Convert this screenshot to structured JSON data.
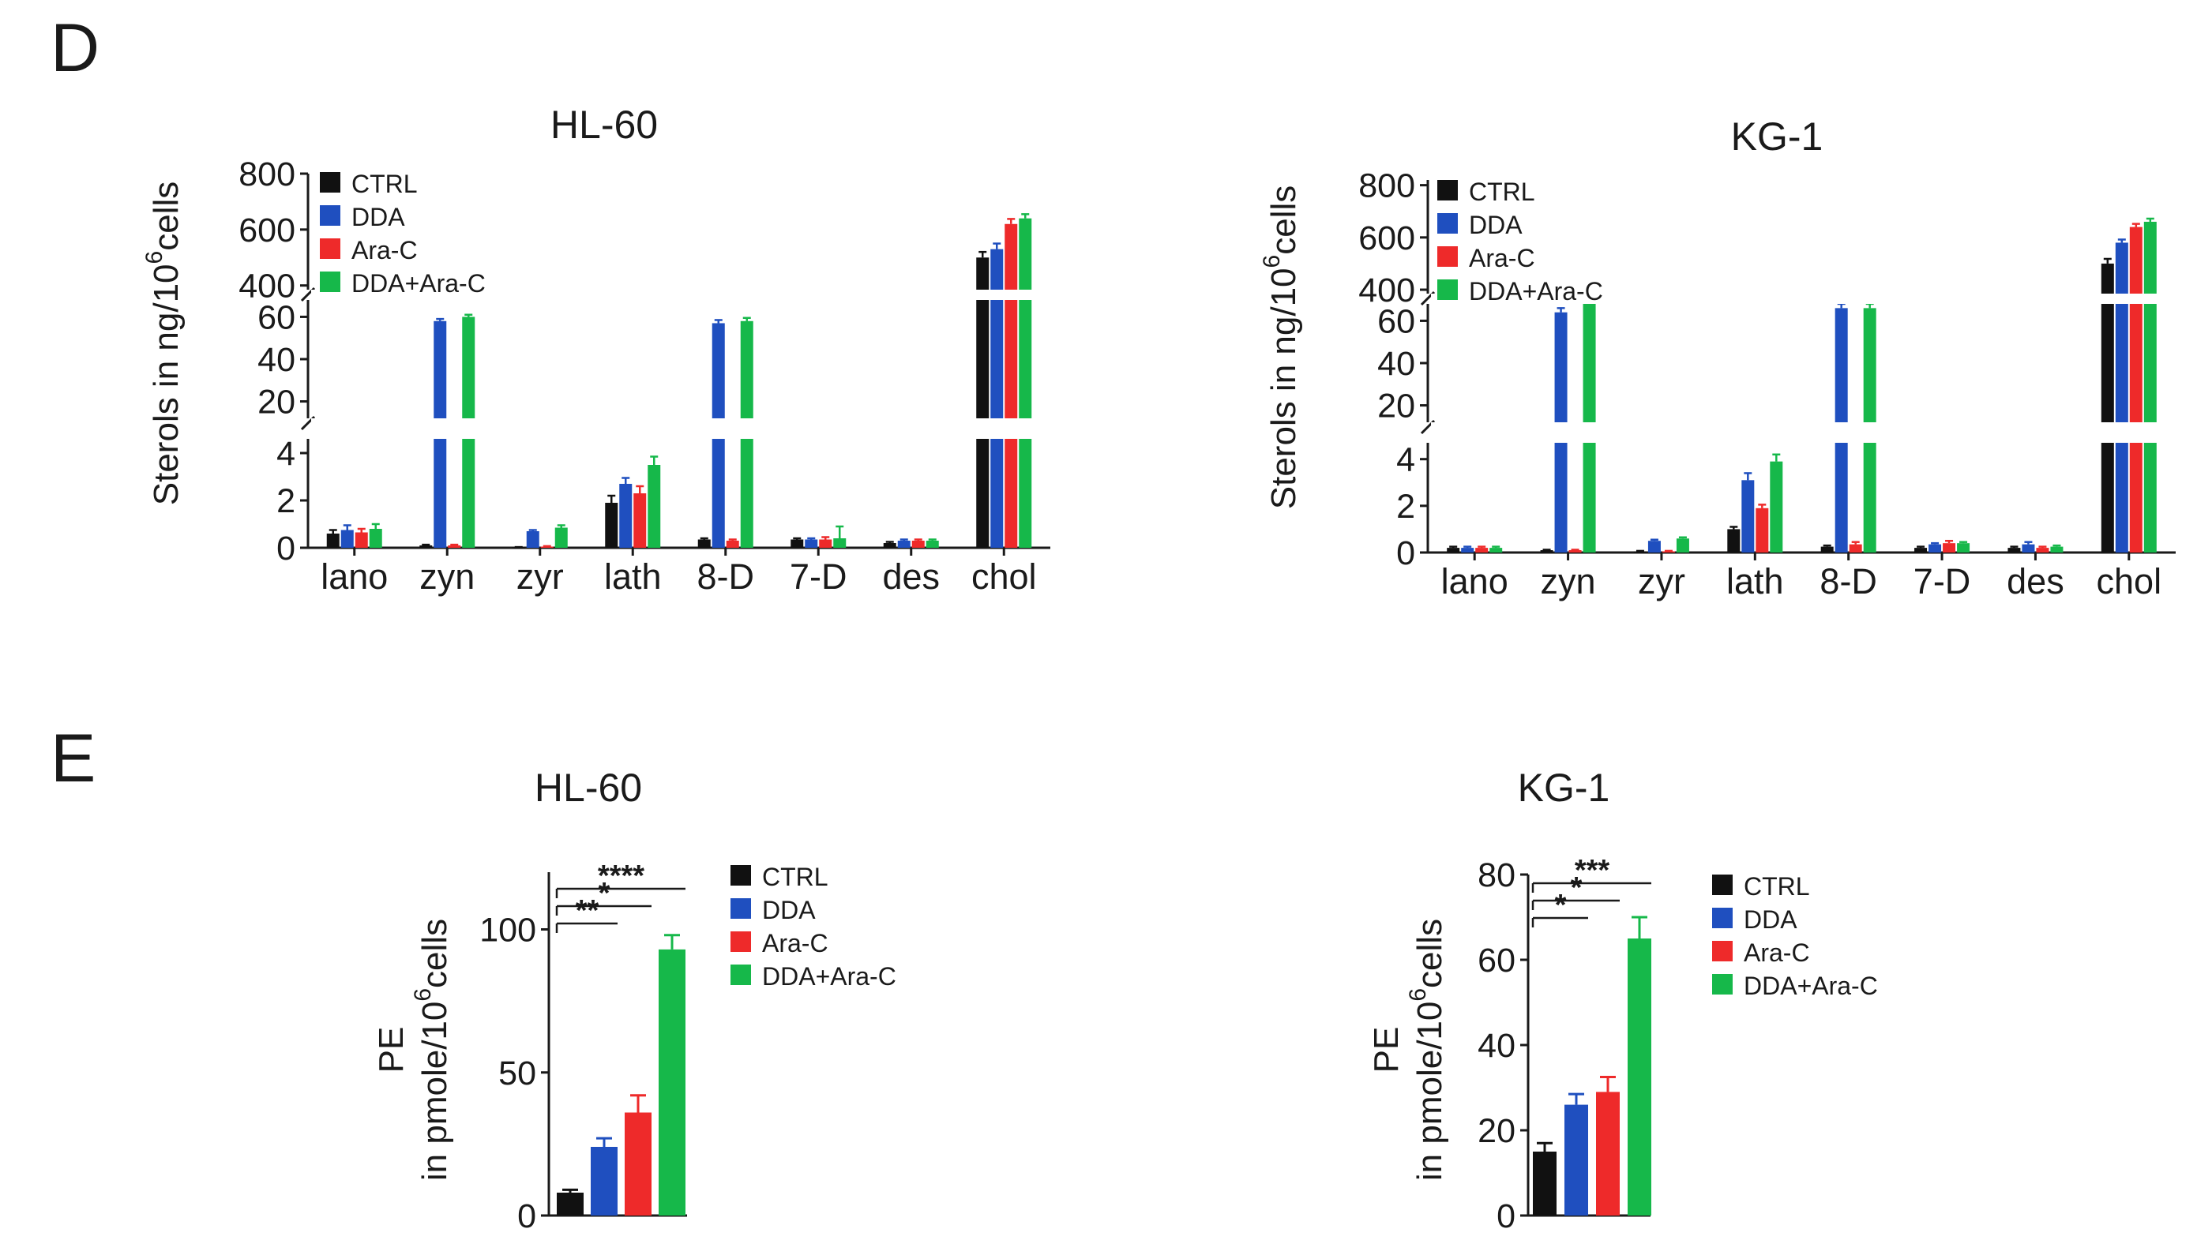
{
  "figure": {
    "panel_d": "D",
    "panel_e": "E"
  },
  "colors": {
    "CTRL": "#111111",
    "DDA": "#1f4fbf",
    "Ara-C": "#ee2a2a",
    "DDA+Ara-C": "#16b84a"
  },
  "chart_data": [
    {
      "id": "d_hl60",
      "type": "bar",
      "title": "HL-60",
      "ylabel_prefix": "Sterols in ng/10",
      "ylabel_sup": "6",
      "ylabel_suffix": "cells",
      "categories": [
        "lano",
        "zyn",
        "zyr",
        "lath",
        "8-D",
        "7-D",
        "des",
        "chol"
      ],
      "legend": [
        "CTRL",
        "DDA",
        "Ara-C",
        "DDA+Ara-C"
      ],
      "broken_axis": {
        "segments": [
          {
            "range": [
              0,
              4.6
            ],
            "ticks": [
              0,
              2,
              4
            ]
          },
          {
            "range": [
              12,
              68
            ],
            "ticks": [
              20,
              40,
              60
            ]
          },
          {
            "range": [
              385,
              800
            ],
            "ticks": [
              400,
              600,
              800
            ]
          }
        ]
      },
      "series": [
        {
          "name": "CTRL",
          "values": [
            0.6,
            0.1,
            0.02,
            1.9,
            0.35,
            0.35,
            0.2,
            500
          ],
          "errors": [
            0.15,
            0.03,
            0.01,
            0.3,
            0.05,
            0.05,
            0.05,
            20
          ]
        },
        {
          "name": "DDA",
          "values": [
            0.75,
            58,
            0.7,
            2.7,
            57,
            0.35,
            0.3,
            530
          ],
          "errors": [
            0.2,
            1,
            0.05,
            0.25,
            1.5,
            0.05,
            0.05,
            20
          ]
        },
        {
          "name": "Ara-C",
          "values": [
            0.65,
            0.1,
            0.05,
            2.3,
            0.3,
            0.35,
            0.3,
            620
          ],
          "errors": [
            0.15,
            0.03,
            0.02,
            0.3,
            0.05,
            0.1,
            0.05,
            18
          ]
        },
        {
          "name": "DDA+Ara-C",
          "values": [
            0.8,
            60,
            0.85,
            3.5,
            58,
            0.4,
            0.3,
            640
          ],
          "errors": [
            0.2,
            1,
            0.1,
            0.35,
            1.5,
            0.5,
            0.05,
            15
          ]
        }
      ]
    },
    {
      "id": "d_kg1",
      "type": "bar",
      "title": "KG-1",
      "ylabel_prefix": "Sterols in ng/10",
      "ylabel_sup": "6",
      "ylabel_suffix": "cells",
      "categories": [
        "lano",
        "zyn",
        "zyr",
        "lath",
        "8-D",
        "7-D",
        "des",
        "chol"
      ],
      "legend": [
        "CTRL",
        "DDA",
        "Ara-C",
        "DDA+Ara-C"
      ],
      "broken_axis": {
        "segments": [
          {
            "range": [
              0,
              4.7
            ],
            "ticks": [
              0,
              2,
              4
            ]
          },
          {
            "range": [
              12,
              68
            ],
            "ticks": [
              20,
              40,
              60
            ]
          },
          {
            "range": [
              385,
              820
            ],
            "ticks": [
              400,
              600,
              800
            ]
          }
        ]
      },
      "series": [
        {
          "name": "CTRL",
          "values": [
            0.2,
            0.1,
            0.05,
            1.0,
            0.25,
            0.2,
            0.2,
            500
          ],
          "errors": [
            0.05,
            0.02,
            0.02,
            0.1,
            0.05,
            0.05,
            0.05,
            18
          ]
        },
        {
          "name": "DDA",
          "values": [
            0.2,
            64,
            0.5,
            3.1,
            66,
            0.35,
            0.35,
            580
          ],
          "errors": [
            0.05,
            2,
            0.05,
            0.3,
            2,
            0.05,
            0.1,
            12
          ]
        },
        {
          "name": "Ara-C",
          "values": [
            0.2,
            0.1,
            0.05,
            1.9,
            0.35,
            0.4,
            0.2,
            640
          ],
          "errors": [
            0.05,
            0.02,
            0.02,
            0.15,
            0.1,
            0.1,
            0.05,
            12
          ]
        },
        {
          "name": "DDA+Ara-C",
          "values": [
            0.2,
            70,
            0.6,
            3.9,
            66,
            0.4,
            0.25,
            660
          ],
          "errors": [
            0.05,
            2,
            0.05,
            0.3,
            2,
            0.05,
            0.05,
            12
          ]
        }
      ]
    },
    {
      "id": "e_hl60",
      "type": "bar",
      "title": "HL-60",
      "ylabel_line1": "PE",
      "ylabel_line2_prefix": "in pmole/10",
      "ylabel_sup": "6",
      "ylabel_suffix": "cells",
      "ylim": [
        0,
        120
      ],
      "yticks": [
        0,
        50,
        100
      ],
      "legend": [
        "CTRL",
        "DDA",
        "Ara-C",
        "DDA+Ara-C"
      ],
      "values": [
        8,
        24,
        36,
        93
      ],
      "errors": [
        1,
        3,
        6,
        5
      ],
      "significance": [
        {
          "from": 0,
          "to": 1,
          "label": "**"
        },
        {
          "from": 0,
          "to": 2,
          "label": "*"
        },
        {
          "from": 0,
          "to": 3,
          "label": "****"
        }
      ]
    },
    {
      "id": "e_kg1",
      "type": "bar",
      "title": "KG-1",
      "ylabel_line1": "PE",
      "ylabel_line2_prefix": "in pmole/10",
      "ylabel_sup": "6",
      "ylabel_suffix": "cells",
      "ylim": [
        0,
        80
      ],
      "yticks": [
        0,
        20,
        40,
        60,
        80
      ],
      "legend": [
        "CTRL",
        "DDA",
        "Ara-C",
        "DDA+Ara-C"
      ],
      "values": [
        15,
        26,
        29,
        65
      ],
      "errors": [
        2,
        2.5,
        3.5,
        5
      ],
      "significance": [
        {
          "from": 0,
          "to": 1,
          "label": "*"
        },
        {
          "from": 0,
          "to": 2,
          "label": "*"
        },
        {
          "from": 0,
          "to": 3,
          "label": "***"
        }
      ]
    }
  ]
}
